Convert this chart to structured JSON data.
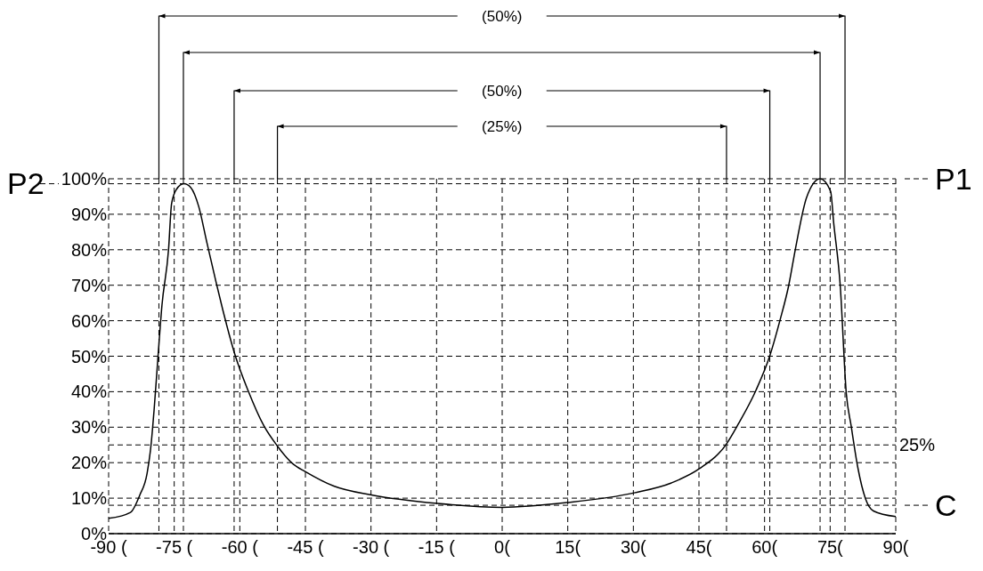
{
  "chart_data": {
    "type": "line",
    "series": [
      {
        "color": "#000000",
        "x": [
          -90,
          -85,
          -82.9,
          -81.2,
          -80.3,
          -79.6,
          -78.7,
          -77.8,
          -76.3,
          -75.6,
          -74.5,
          -72.8,
          -71.2,
          -69.4,
          -67.6,
          -65.4,
          -63.9,
          -61,
          -58.1,
          -54.5,
          -51.6,
          -47.9,
          -44.9,
          -38.5,
          -29.9,
          -14.8,
          0,
          15.2,
          30.2,
          38.7,
          45.1,
          51.3,
          54,
          58,
          61.2,
          63.5,
          65.5,
          67.1,
          69.6,
          72.7,
          75.1,
          75.8,
          77.3,
          78.7,
          79.8,
          81.3,
          83.1,
          84.9,
          90
        ],
        "values": [
          4.3,
          6,
          10.8,
          17,
          25,
          34.9,
          50,
          64.4,
          80,
          93,
          97,
          98.6,
          97.5,
          92.2,
          82.4,
          70.7,
          63.1,
          50,
          40.3,
          30.4,
          25,
          19.7,
          17.4,
          13.4,
          10.9,
          8.5,
          7.4,
          8.8,
          11.5,
          14.3,
          18.3,
          25.3,
          30.9,
          40.3,
          50.1,
          60,
          69.8,
          80.5,
          94.7,
          100,
          96.5,
          87.7,
          70,
          39.4,
          30.4,
          18.8,
          9.8,
          6.4,
          4.8
        ]
      }
    ],
    "xlim": [
      -90,
      90
    ],
    "xticks": [
      {
        "value": -90,
        "label": "-90 ("
      },
      {
        "value": -75,
        "label": "-75 ("
      },
      {
        "value": -60,
        "label": "-60 ("
      },
      {
        "value": -45,
        "label": "-45 ("
      },
      {
        "value": -30,
        "label": "-30 ("
      },
      {
        "value": -15,
        "label": "-15 ("
      },
      {
        "value": 0,
        "label": "0("
      },
      {
        "value": 15,
        "label": "15("
      },
      {
        "value": 30,
        "label": "30("
      },
      {
        "value": 45,
        "label": "45("
      },
      {
        "value": 60,
        "label": "60("
      },
      {
        "value": 75,
        "label": "75("
      },
      {
        "value": 90,
        "label": "90("
      }
    ],
    "ylim": [
      0,
      100
    ],
    "yticks": [
      {
        "value": 0,
        "label": "0%"
      },
      {
        "value": 10,
        "label": "10%"
      },
      {
        "value": 20,
        "label": "20%"
      },
      {
        "value": 30,
        "label": "30%"
      },
      {
        "value": 40,
        "label": "40%"
      },
      {
        "value": 50,
        "label": "50%"
      },
      {
        "value": 60,
        "label": "60%"
      },
      {
        "value": 70,
        "label": "70%"
      },
      {
        "value": 80,
        "label": "80%"
      },
      {
        "value": 90,
        "label": "90%"
      },
      {
        "value": 100,
        "label": "100%"
      }
    ],
    "grid": true,
    "line_style": "solid",
    "marker": "none",
    "ref_lines": [
      {
        "axis": "x",
        "value": -78.5,
        "line_style": "dashed"
      },
      {
        "axis": "x",
        "value": -61.3,
        "line_style": "dashed"
      },
      {
        "axis": "x",
        "value": -51.4,
        "line_style": "dashed"
      },
      {
        "axis": "x",
        "value": -72.9,
        "line_style": "dashed"
      },
      {
        "axis": "x",
        "value": 72.7,
        "line_style": "dashed"
      },
      {
        "axis": "x",
        "value": 51.3,
        "line_style": "dashed"
      },
      {
        "axis": "x",
        "value": 61.2,
        "line_style": "dashed"
      },
      {
        "axis": "x",
        "value": 78.4,
        "line_style": "dashed"
      },
      {
        "axis": "y",
        "value": 25,
        "label": "25%",
        "line_style": "dashed"
      },
      {
        "axis": "y",
        "value": 98.6,
        "label": "P2",
        "line_style": "dashed"
      },
      {
        "axis": "y",
        "value": 100,
        "label": "P1",
        "line_style": "dashed"
      },
      {
        "axis": "y",
        "value": 8,
        "label": "C",
        "line_style": "dashed"
      }
    ],
    "annotations": [
      "(50%)",
      "(50%)",
      "(25%)"
    ]
  }
}
